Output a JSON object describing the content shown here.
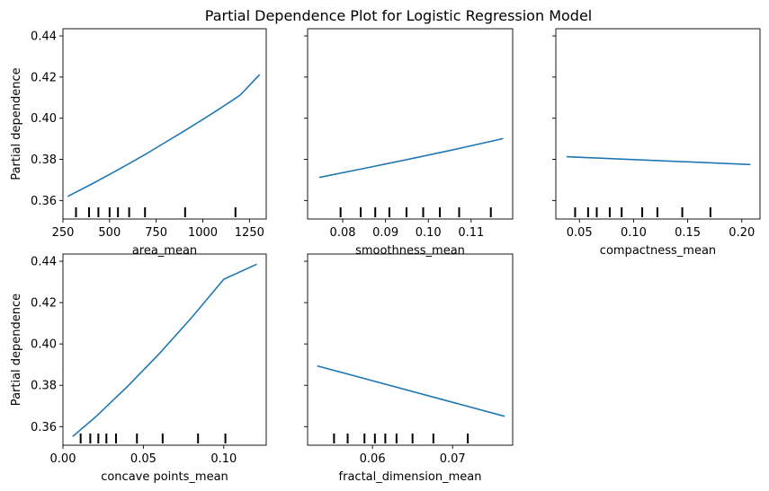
{
  "title": "Partial Dependence Plot for Logistic Regression Model",
  "line_color": "#1f77b4",
  "chart_data": [
    {
      "type": "line",
      "xlabel": "area_mean",
      "ylabel": "Partial dependence",
      "xlim": [
        250,
        1340
      ],
      "ylim": [
        0.351,
        0.4435
      ],
      "xticks": [
        {
          "v": 250,
          "label": "250"
        },
        {
          "v": 500,
          "label": "500"
        },
        {
          "v": 750,
          "label": "750"
        },
        {
          "v": 1000,
          "label": "1000"
        },
        {
          "v": 1250,
          "label": "1250"
        }
      ],
      "yticks": [
        {
          "v": 0.36,
          "label": "0.36"
        },
        {
          "v": 0.38,
          "label": "0.38"
        },
        {
          "v": 0.4,
          "label": "0.40"
        },
        {
          "v": 0.42,
          "label": "0.42"
        },
        {
          "v": 0.44,
          "label": "0.44"
        }
      ],
      "show_yticklabels": true,
      "x": [
        275,
        400,
        500,
        600,
        700,
        800,
        900,
        1000,
        1100,
        1200,
        1305
      ],
      "y": [
        0.362,
        0.3678,
        0.3727,
        0.3777,
        0.3829,
        0.3883,
        0.3938,
        0.3994,
        0.4052,
        0.4112,
        0.4212
      ],
      "rug": [
        320,
        390,
        440,
        500,
        545,
        605,
        690,
        905,
        1175
      ]
    },
    {
      "type": "line",
      "xlabel": "smoothness_mean",
      "ylabel": "",
      "xlim": [
        0.0718,
        0.1197
      ],
      "ylim": [
        0.351,
        0.4435
      ],
      "xticks": [
        {
          "v": 0.08,
          "label": "0.08"
        },
        {
          "v": 0.09,
          "label": "0.09"
        },
        {
          "v": 0.1,
          "label": "0.10"
        },
        {
          "v": 0.11,
          "label": "0.11"
        }
      ],
      "yticks": [
        {
          "v": 0.36,
          "label": "0.36"
        },
        {
          "v": 0.38,
          "label": "0.38"
        },
        {
          "v": 0.4,
          "label": "0.40"
        },
        {
          "v": 0.42,
          "label": "0.42"
        },
        {
          "v": 0.44,
          "label": "0.44"
        }
      ],
      "show_yticklabels": false,
      "x": [
        0.0745,
        0.085,
        0.095,
        0.105,
        0.1175
      ],
      "y": [
        0.3712,
        0.3756,
        0.3799,
        0.3843,
        0.3901
      ],
      "rug": [
        0.0795,
        0.0842,
        0.0876,
        0.0909,
        0.0949,
        0.0988,
        0.1027,
        0.1072,
        0.1146
      ]
    },
    {
      "type": "line",
      "xlabel": "compactness_mean",
      "ylabel": "",
      "xlim": [
        0.0282,
        0.2168
      ],
      "ylim": [
        0.351,
        0.4435
      ],
      "xticks": [
        {
          "v": 0.05,
          "label": "0.05"
        },
        {
          "v": 0.1,
          "label": "0.10"
        },
        {
          "v": 0.15,
          "label": "0.15"
        },
        {
          "v": 0.2,
          "label": "0.20"
        }
      ],
      "yticks": [
        {
          "v": 0.36,
          "label": "0.36"
        },
        {
          "v": 0.38,
          "label": "0.38"
        },
        {
          "v": 0.4,
          "label": "0.40"
        },
        {
          "v": 0.42,
          "label": "0.42"
        },
        {
          "v": 0.44,
          "label": "0.44"
        }
      ],
      "show_yticklabels": false,
      "x": [
        0.038,
        0.208
      ],
      "y": [
        0.3813,
        0.3775
      ],
      "rug": [
        0.046,
        0.058,
        0.066,
        0.078,
        0.089,
        0.108,
        0.122,
        0.145,
        0.171
      ]
    },
    {
      "type": "line",
      "xlabel": "concave points_mean",
      "ylabel": "Partial dependence",
      "xlim": [
        0.0,
        0.1264
      ],
      "ylim": [
        0.351,
        0.4435
      ],
      "xticks": [
        {
          "v": 0.0,
          "label": "0.00"
        },
        {
          "v": 0.05,
          "label": "0.05"
        },
        {
          "v": 0.1,
          "label": "0.10"
        }
      ],
      "yticks": [
        {
          "v": 0.36,
          "label": "0.36"
        },
        {
          "v": 0.38,
          "label": "0.38"
        },
        {
          "v": 0.4,
          "label": "0.40"
        },
        {
          "v": 0.42,
          "label": "0.42"
        },
        {
          "v": 0.44,
          "label": "0.44"
        }
      ],
      "show_yticklabels": true,
      "x": [
        0.006,
        0.02,
        0.04,
        0.06,
        0.08,
        0.1,
        0.1205
      ],
      "y": [
        0.3552,
        0.3645,
        0.3793,
        0.3954,
        0.4127,
        0.4313,
        0.4386
      ],
      "rug": [
        0.011,
        0.017,
        0.022,
        0.027,
        0.033,
        0.046,
        0.062,
        0.084,
        0.101
      ]
    },
    {
      "type": "line",
      "xlabel": "fractal_dimension_mean",
      "ylabel": "",
      "xlim": [
        0.0519,
        0.0775
      ],
      "ylim": [
        0.351,
        0.4435
      ],
      "xticks": [
        {
          "v": 0.06,
          "label": "0.06"
        },
        {
          "v": 0.07,
          "label": "0.07"
        }
      ],
      "yticks": [
        {
          "v": 0.36,
          "label": "0.36"
        },
        {
          "v": 0.38,
          "label": "0.38"
        },
        {
          "v": 0.4,
          "label": "0.40"
        },
        {
          "v": 0.42,
          "label": "0.42"
        },
        {
          "v": 0.44,
          "label": "0.44"
        }
      ],
      "show_yticklabels": false,
      "x": [
        0.0531,
        0.0765
      ],
      "y": [
        0.3894,
        0.365
      ],
      "rug": [
        0.0552,
        0.0569,
        0.059,
        0.0603,
        0.0616,
        0.063,
        0.065,
        0.0676,
        0.0719
      ]
    }
  ]
}
